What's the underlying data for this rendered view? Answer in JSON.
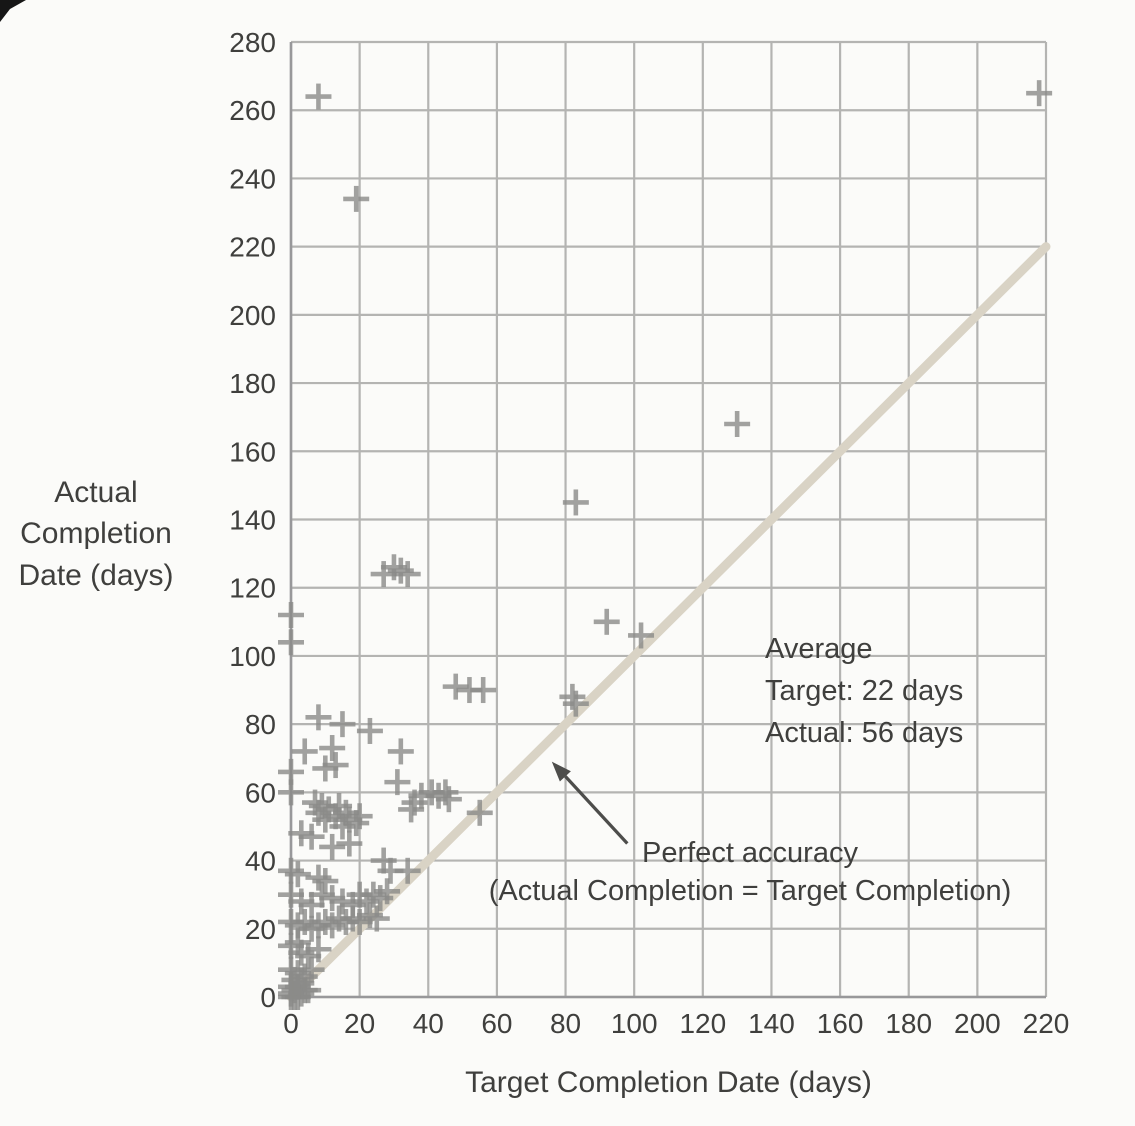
{
  "chart_data": {
    "type": "scatter",
    "title": "",
    "xlabel": "Target Completion Date (days)",
    "ylabel_lines": "Actual\nCompletion\nDate (days)",
    "xlim": [
      0,
      220
    ],
    "ylim": [
      0,
      280
    ],
    "xticks": [
      0,
      20,
      40,
      60,
      80,
      100,
      120,
      140,
      160,
      180,
      200,
      220
    ],
    "yticks": [
      0,
      20,
      40,
      60,
      80,
      100,
      120,
      140,
      160,
      180,
      200,
      220,
      240,
      260,
      280
    ],
    "grid": true,
    "marker": "plus",
    "points": [
      [
        8,
        264
      ],
      [
        19,
        234
      ],
      [
        218,
        265
      ],
      [
        130,
        168
      ],
      [
        83,
        145
      ],
      [
        27,
        124
      ],
      [
        30,
        126
      ],
      [
        32,
        125
      ],
      [
        34,
        124
      ],
      [
        0,
        112
      ],
      [
        0,
        104
      ],
      [
        92,
        110
      ],
      [
        102,
        106
      ],
      [
        48,
        91
      ],
      [
        52,
        90
      ],
      [
        56,
        90
      ],
      [
        82,
        88
      ],
      [
        83,
        86
      ],
      [
        8,
        82
      ],
      [
        15,
        80
      ],
      [
        23,
        78
      ],
      [
        4,
        72
      ],
      [
        12,
        73
      ],
      [
        13,
        68
      ],
      [
        32,
        72
      ],
      [
        10,
        67
      ],
      [
        0,
        66
      ],
      [
        31,
        63
      ],
      [
        0,
        60
      ],
      [
        35,
        55
      ],
      [
        36,
        57
      ],
      [
        38,
        59
      ],
      [
        41,
        60
      ],
      [
        43,
        59
      ],
      [
        45,
        60
      ],
      [
        46,
        58
      ],
      [
        55,
        54
      ],
      [
        7,
        57
      ],
      [
        8,
        54
      ],
      [
        9,
        56
      ],
      [
        10,
        52
      ],
      [
        11,
        55
      ],
      [
        13,
        53
      ],
      [
        14,
        56
      ],
      [
        15,
        50
      ],
      [
        16,
        54
      ],
      [
        17,
        52
      ],
      [
        19,
        51
      ],
      [
        20,
        53
      ],
      [
        3,
        48
      ],
      [
        6,
        47
      ],
      [
        12,
        44
      ],
      [
        17,
        45
      ],
      [
        27,
        40
      ],
      [
        29,
        37
      ],
      [
        34,
        37
      ],
      [
        0,
        37
      ],
      [
        2,
        36
      ],
      [
        8,
        35
      ],
      [
        10,
        34
      ],
      [
        0,
        30
      ],
      [
        3,
        28
      ],
      [
        6,
        27
      ],
      [
        9,
        30
      ],
      [
        12,
        29
      ],
      [
        15,
        28
      ],
      [
        18,
        27
      ],
      [
        20,
        30
      ],
      [
        22,
        28
      ],
      [
        24,
        30
      ],
      [
        26,
        29
      ],
      [
        28,
        31
      ],
      [
        0,
        22
      ],
      [
        2,
        21
      ],
      [
        4,
        22
      ],
      [
        6,
        20
      ],
      [
        8,
        21
      ],
      [
        10,
        22
      ],
      [
        12,
        21
      ],
      [
        14,
        23
      ],
      [
        16,
        22
      ],
      [
        18,
        23
      ],
      [
        20,
        22
      ],
      [
        23,
        24
      ],
      [
        25,
        23
      ],
      [
        0,
        15
      ],
      [
        2,
        16
      ],
      [
        3,
        13
      ],
      [
        5,
        12
      ],
      [
        8,
        14
      ],
      [
        0,
        8
      ],
      [
        2,
        7
      ],
      [
        4,
        6
      ],
      [
        6,
        8
      ],
      [
        1,
        5
      ],
      [
        3,
        4
      ],
      [
        0,
        3
      ],
      [
        1,
        2
      ],
      [
        2,
        3
      ],
      [
        4,
        2
      ],
      [
        5,
        2
      ],
      [
        0,
        1
      ],
      [
        1,
        0
      ],
      [
        3,
        1
      ],
      [
        0,
        0
      ],
      [
        2,
        0
      ]
    ],
    "reference_line": {
      "from": [
        0,
        0
      ],
      "to": [
        220,
        220
      ]
    },
    "annotations": {
      "average": {
        "text": "Average\nTarget: 22 days\nActual: 56 days",
        "target_days": 22,
        "actual_days": 56
      },
      "perfect_accuracy": {
        "text": "Perfect accuracy\n(Actual Completion = Target Completion)",
        "arrow": {
          "from": [
            98,
            45
          ],
          "to": [
            76,
            69
          ]
        }
      }
    },
    "colors": {
      "marker": "#8b8b89",
      "grid": "#b4b4b2",
      "axis": "#98989a",
      "reference_line": "#d9d3c5",
      "text": "#3f3f3d",
      "arrow": "#4d4d4b",
      "background": "#fbfbf9"
    }
  }
}
